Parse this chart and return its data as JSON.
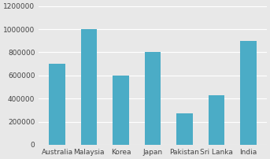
{
  "categories": [
    "Australia",
    "Malaysia",
    "Korea",
    "Japan",
    "Pakistan",
    "Sri Lanka",
    "India"
  ],
  "values": [
    700000,
    1000000,
    600000,
    800000,
    270000,
    430000,
    900000
  ],
  "bar_color": "#4BACC6",
  "ylim": [
    0,
    1200000
  ],
  "yticks": [
    0,
    200000,
    400000,
    600000,
    800000,
    1000000,
    1200000
  ],
  "background_color": "#e8e8e8",
  "grid_color": "#ffffff",
  "bar_width": 0.5,
  "figsize": [
    3.43,
    2.02
  ],
  "dpi": 100,
  "xlabel_fontsize": 6.5,
  "ylabel_fontsize": 6.5
}
